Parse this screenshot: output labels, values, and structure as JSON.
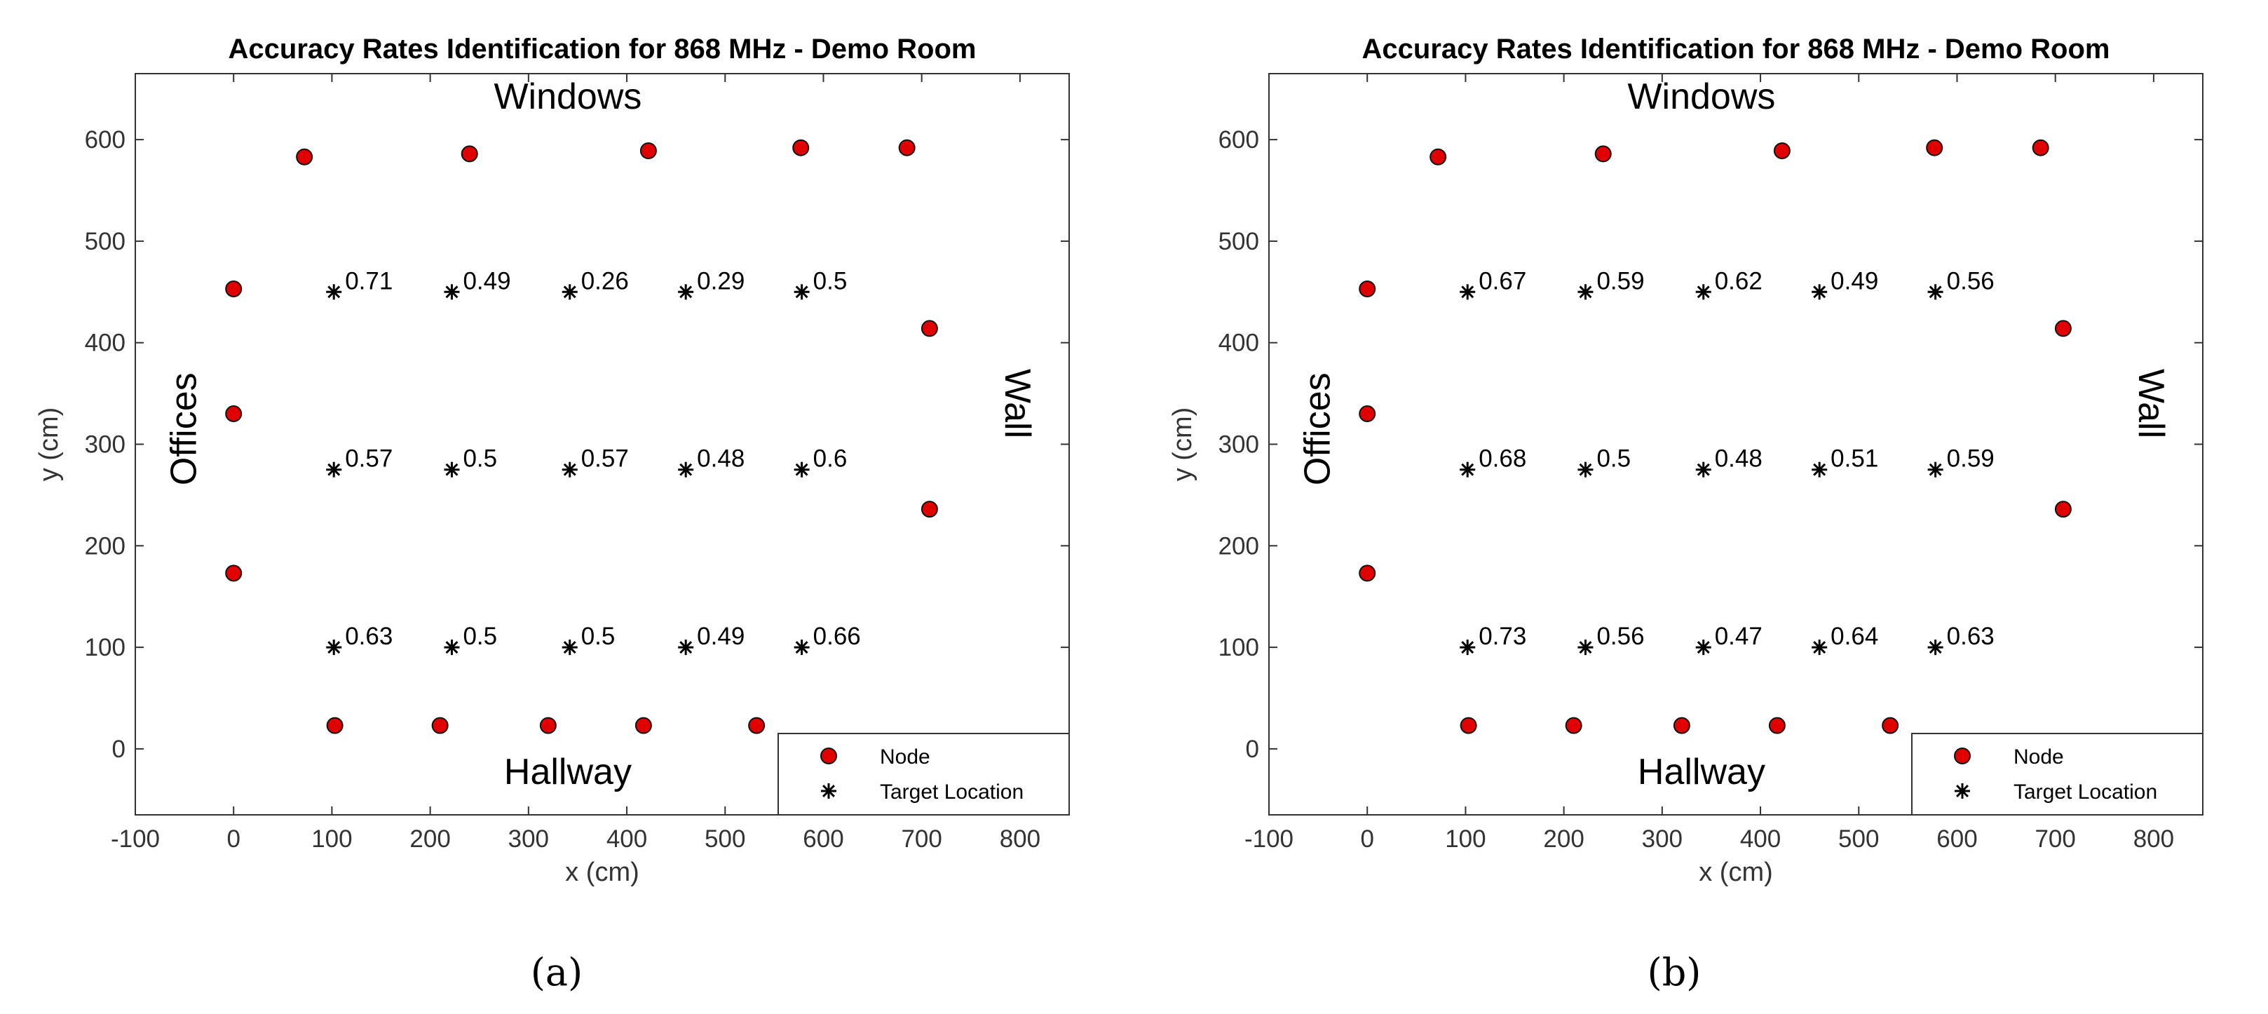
{
  "chart_data": [
    {
      "type": "scatter",
      "panel_label": "(a)",
      "title": "Accuracy Rates Identification for 868 MHz - Demo Room",
      "xlabel": "x (cm)",
      "ylabel": "y (cm)",
      "xlim": [
        -100,
        850
      ],
      "ylim": [
        -65,
        665
      ],
      "xticks": [
        -100,
        0,
        100,
        200,
        300,
        400,
        500,
        600,
        700,
        800
      ],
      "yticks": [
        0,
        100,
        200,
        300,
        400,
        500,
        600
      ],
      "grid": false,
      "legend_position": "bottom-right",
      "room_labels": [
        {
          "text": "Windows",
          "x": 340,
          "y": 640,
          "rotate": 0
        },
        {
          "text": "Hallway",
          "x": 340,
          "y": -25,
          "rotate": 0
        },
        {
          "text": "Offices",
          "x": -48,
          "y": 315,
          "rotate": -90
        },
        {
          "text": "Wall",
          "x": 795,
          "y": 340,
          "rotate": 90
        }
      ],
      "series": [
        {
          "name": "Node",
          "marker": "circle",
          "color": "#e00000",
          "points": [
            [
              72,
              583
            ],
            [
              240,
              586
            ],
            [
              422,
              589
            ],
            [
              577,
              592
            ],
            [
              685,
              592
            ],
            [
              0,
              453
            ],
            [
              0,
              330
            ],
            [
              0,
              173
            ],
            [
              708,
              414
            ],
            [
              708,
              236
            ],
            [
              103,
              23
            ],
            [
              210,
              23
            ],
            [
              320,
              23
            ],
            [
              417,
              23
            ],
            [
              532,
              23
            ]
          ]
        },
        {
          "name": "Target Location",
          "marker": "asterisk",
          "color": "#000000",
          "points": [
            {
              "x": 102,
              "y": 450,
              "label": "0.71"
            },
            {
              "x": 222,
              "y": 450,
              "label": "0.49"
            },
            {
              "x": 342,
              "y": 450,
              "label": "0.26"
            },
            {
              "x": 460,
              "y": 450,
              "label": "0.29"
            },
            {
              "x": 578,
              "y": 450,
              "label": "0.5"
            },
            {
              "x": 102,
              "y": 275,
              "label": "0.57"
            },
            {
              "x": 222,
              "y": 275,
              "label": "0.5"
            },
            {
              "x": 342,
              "y": 275,
              "label": "0.57"
            },
            {
              "x": 460,
              "y": 275,
              "label": "0.48"
            },
            {
              "x": 578,
              "y": 275,
              "label": "0.6"
            },
            {
              "x": 102,
              "y": 100,
              "label": "0.63"
            },
            {
              "x": 222,
              "y": 100,
              "label": "0.5"
            },
            {
              "x": 342,
              "y": 100,
              "label": "0.5"
            },
            {
              "x": 460,
              "y": 100,
              "label": "0.49"
            },
            {
              "x": 578,
              "y": 100,
              "label": "0.66"
            }
          ]
        }
      ]
    },
    {
      "type": "scatter",
      "panel_label": "(b)",
      "title": "Accuracy Rates Identification for 868 MHz - Demo Room",
      "xlabel": "x (cm)",
      "ylabel": "y (cm)",
      "xlim": [
        -100,
        850
      ],
      "ylim": [
        -65,
        665
      ],
      "xticks": [
        -100,
        0,
        100,
        200,
        300,
        400,
        500,
        600,
        700,
        800
      ],
      "yticks": [
        0,
        100,
        200,
        300,
        400,
        500,
        600
      ],
      "grid": false,
      "legend_position": "bottom-right",
      "room_labels": [
        {
          "text": "Windows",
          "x": 340,
          "y": 640,
          "rotate": 0
        },
        {
          "text": "Hallway",
          "x": 340,
          "y": -25,
          "rotate": 0
        },
        {
          "text": "Offices",
          "x": -48,
          "y": 315,
          "rotate": -90
        },
        {
          "text": "Wall",
          "x": 795,
          "y": 340,
          "rotate": 90
        }
      ],
      "series": [
        {
          "name": "Node",
          "marker": "circle",
          "color": "#e00000",
          "points": [
            [
              72,
              583
            ],
            [
              240,
              586
            ],
            [
              422,
              589
            ],
            [
              577,
              592
            ],
            [
              685,
              592
            ],
            [
              0,
              453
            ],
            [
              0,
              330
            ],
            [
              0,
              173
            ],
            [
              708,
              414
            ],
            [
              708,
              236
            ],
            [
              103,
              23
            ],
            [
              210,
              23
            ],
            [
              320,
              23
            ],
            [
              417,
              23
            ],
            [
              532,
              23
            ]
          ]
        },
        {
          "name": "Target Location",
          "marker": "asterisk",
          "color": "#000000",
          "points": [
            {
              "x": 102,
              "y": 450,
              "label": "0.67"
            },
            {
              "x": 222,
              "y": 450,
              "label": "0.59"
            },
            {
              "x": 342,
              "y": 450,
              "label": "0.62"
            },
            {
              "x": 460,
              "y": 450,
              "label": "0.49"
            },
            {
              "x": 578,
              "y": 450,
              "label": "0.56"
            },
            {
              "x": 102,
              "y": 275,
              "label": "0.68"
            },
            {
              "x": 222,
              "y": 275,
              "label": "0.5"
            },
            {
              "x": 342,
              "y": 275,
              "label": "0.48"
            },
            {
              "x": 460,
              "y": 275,
              "label": "0.51"
            },
            {
              "x": 578,
              "y": 275,
              "label": "0.59"
            },
            {
              "x": 102,
              "y": 100,
              "label": "0.73"
            },
            {
              "x": 222,
              "y": 100,
              "label": "0.56"
            },
            {
              "x": 342,
              "y": 100,
              "label": "0.47"
            },
            {
              "x": 460,
              "y": 100,
              "label": "0.64"
            },
            {
              "x": 578,
              "y": 100,
              "label": "0.63"
            }
          ]
        }
      ]
    }
  ]
}
